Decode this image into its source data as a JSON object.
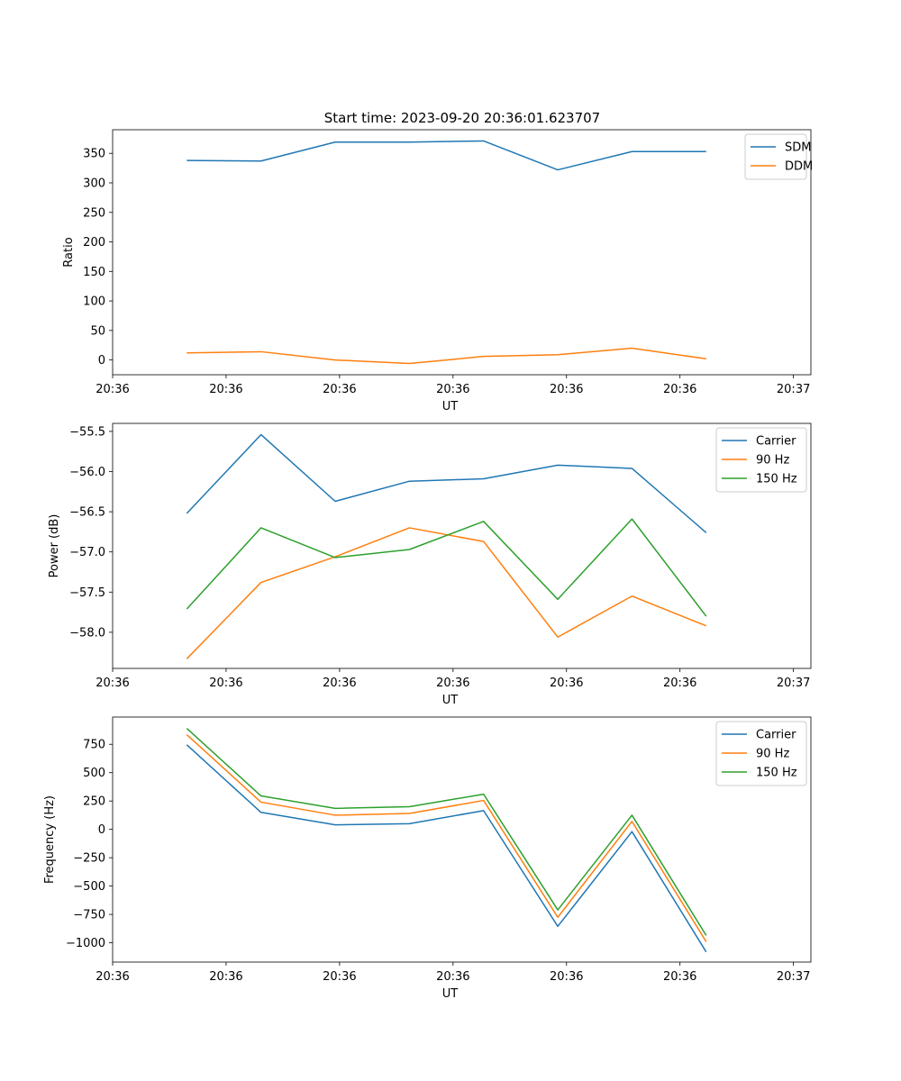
{
  "figure": {
    "title": "Start time: 2023-09-20 20:36:01.623707"
  },
  "chart_data": [
    {
      "type": "line",
      "xlabel": "UT",
      "ylabel": "Ratio",
      "x": [
        0.85,
        1.7,
        2.55,
        3.4,
        4.25,
        5.1,
        5.95,
        6.8
      ],
      "xlim": [
        0,
        8
      ],
      "xticks": [
        0,
        1.3,
        2.6,
        3.9,
        5.2,
        6.5,
        7.8
      ],
      "xtick_labels": [
        "20:36",
        "20:36",
        "20:36",
        "20:36",
        "20:36",
        "20:36",
        "20:37"
      ],
      "ylim": [
        -25,
        390
      ],
      "yticks": [
        0,
        50,
        100,
        150,
        200,
        250,
        300,
        350
      ],
      "yticks_labels": [
        "0",
        "50",
        "100",
        "150",
        "200",
        "250",
        "300",
        "350"
      ],
      "legend": "top-right",
      "series": [
        {
          "name": "SDM",
          "color": "#1f77b4",
          "values": [
            338,
            337,
            369,
            369,
            371,
            322,
            353,
            353
          ]
        },
        {
          "name": "DDM",
          "color": "#ff7f0e",
          "values": [
            12,
            14,
            0,
            -6,
            6,
            9,
            20,
            2
          ]
        }
      ]
    },
    {
      "type": "line",
      "xlabel": "UT",
      "ylabel": "Power (dB)",
      "x": [
        0.85,
        1.7,
        2.55,
        3.4,
        4.25,
        5.1,
        5.95,
        6.8
      ],
      "xlim": [
        0,
        8
      ],
      "xticks": [
        0,
        1.3,
        2.6,
        3.9,
        5.2,
        6.5,
        7.8
      ],
      "xtick_labels": [
        "20:36",
        "20:36",
        "20:36",
        "20:36",
        "20:36",
        "20:36",
        "20:37"
      ],
      "ylim": [
        -58.45,
        -55.4
      ],
      "yticks": [
        -58.0,
        -57.5,
        -57.0,
        -56.5,
        -56.0,
        -55.5
      ],
      "yticks_labels": [
        "−58.0",
        "−57.5",
        "−57.0",
        "−56.5",
        "−56.0",
        "−55.5"
      ],
      "legend": "top-right",
      "series": [
        {
          "name": "Carrier",
          "color": "#1f77b4",
          "values": [
            -56.52,
            -55.54,
            -56.37,
            -56.12,
            -56.09,
            -55.92,
            -55.96,
            -56.76
          ]
        },
        {
          "name": "90 Hz",
          "color": "#ff7f0e",
          "values": [
            -58.33,
            -57.38,
            -57.06,
            -56.7,
            -56.87,
            -58.06,
            -57.55,
            -57.92
          ]
        },
        {
          "name": "150 Hz",
          "color": "#2ca02c",
          "values": [
            -57.71,
            -56.7,
            -57.07,
            -56.97,
            -56.62,
            -57.59,
            -56.59,
            -57.8
          ]
        }
      ]
    },
    {
      "type": "line",
      "xlabel": "UT",
      "ylabel": "Frequency (Hz)",
      "x": [
        0.85,
        1.7,
        2.55,
        3.4,
        4.25,
        5.1,
        5.95,
        6.8
      ],
      "xlim": [
        0,
        8
      ],
      "xticks": [
        0,
        1.3,
        2.6,
        3.9,
        5.2,
        6.5,
        7.8
      ],
      "xtick_labels": [
        "20:36",
        "20:36",
        "20:36",
        "20:36",
        "20:36",
        "20:36",
        "20:37"
      ],
      "ylim": [
        -1170,
        990
      ],
      "yticks": [
        -1000,
        -750,
        -500,
        -250,
        0,
        250,
        500,
        750
      ],
      "yticks_labels": [
        "−1000",
        "−750",
        "−500",
        "−250",
        "0",
        "250",
        "500",
        "750"
      ],
      "legend": "top-right",
      "series": [
        {
          "name": "Carrier",
          "color": "#1f77b4",
          "values": [
            745,
            150,
            40,
            50,
            165,
            -855,
            -20,
            -1080
          ]
        },
        {
          "name": "90 Hz",
          "color": "#ff7f0e",
          "values": [
            835,
            240,
            125,
            140,
            255,
            -775,
            70,
            -990
          ]
        },
        {
          "name": "150 Hz",
          "color": "#2ca02c",
          "values": [
            890,
            295,
            185,
            200,
            310,
            -710,
            125,
            -935
          ]
        }
      ]
    }
  ]
}
